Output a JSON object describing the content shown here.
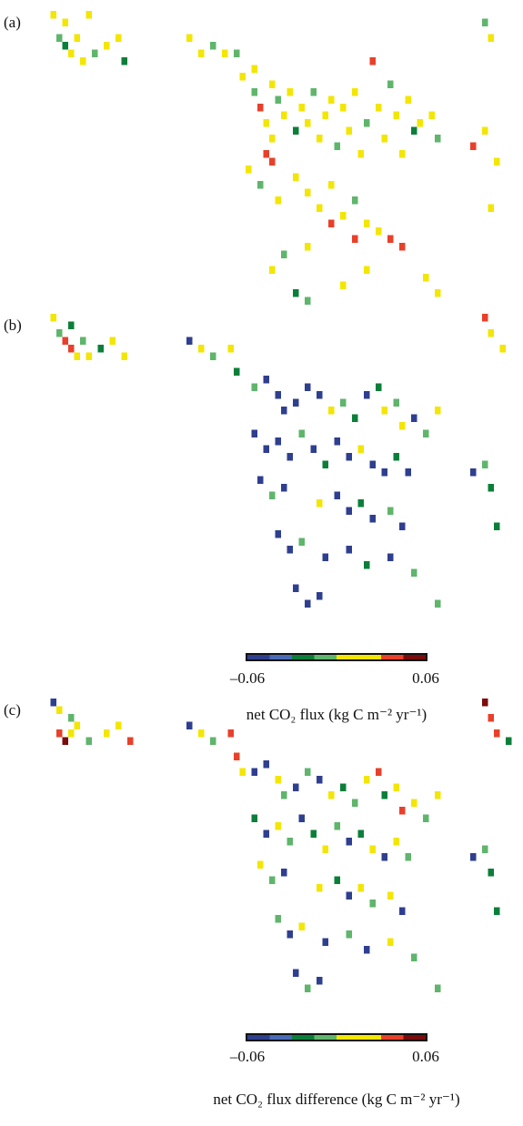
{
  "chart_data": [
    {
      "type": "heatmap",
      "label": "(a)",
      "clim": [
        -0.06,
        0.06
      ],
      "colormap": [
        "#2f3f8f",
        "#4a6bb8",
        "#0b7f3a",
        "#5fb56c",
        "#f3e600",
        "#f3e600",
        "#e8402a",
        "#7a0c0c"
      ],
      "cells": [
        [
          7,
          0,
          0.005
        ],
        [
          9,
          1,
          0.005
        ],
        [
          13,
          0,
          0.005
        ],
        [
          8,
          3,
          -0.015
        ],
        [
          9,
          4,
          -0.03
        ],
        [
          10,
          5,
          0.005
        ],
        [
          11,
          3,
          0.005
        ],
        [
          12,
          6,
          0.005
        ],
        [
          14,
          5,
          -0.015
        ],
        [
          16,
          4,
          0.005
        ],
        [
          18,
          3,
          0.005
        ],
        [
          19,
          6,
          -0.03
        ],
        [
          30,
          3,
          0.005
        ],
        [
          32,
          5,
          0.005
        ],
        [
          34,
          4,
          -0.015
        ],
        [
          36,
          5,
          0.005
        ],
        [
          38,
          5,
          -0.015
        ],
        [
          39,
          8,
          0.005
        ],
        [
          41,
          7,
          0.005
        ],
        [
          41,
          10,
          -0.015
        ],
        [
          42,
          12,
          0.04
        ],
        [
          43,
          14,
          0.005
        ],
        [
          44,
          9,
          0.005
        ],
        [
          44,
          16,
          0.005
        ],
        [
          45,
          11,
          -0.015
        ],
        [
          46,
          13,
          0.005
        ],
        [
          47,
          10,
          0.005
        ],
        [
          48,
          15,
          -0.03
        ],
        [
          49,
          12,
          0.005
        ],
        [
          50,
          14,
          0.005
        ],
        [
          51,
          10,
          -0.015
        ],
        [
          52,
          16,
          0.005
        ],
        [
          53,
          13,
          0.005
        ],
        [
          54,
          11,
          0.005
        ],
        [
          55,
          17,
          -0.015
        ],
        [
          56,
          12,
          0.005
        ],
        [
          57,
          15,
          0.005
        ],
        [
          58,
          10,
          0.005
        ],
        [
          59,
          18,
          0.005
        ],
        [
          60,
          14,
          -0.015
        ],
        [
          61,
          6,
          0.04
        ],
        [
          62,
          12,
          0.005
        ],
        [
          63,
          16,
          0.005
        ],
        [
          64,
          9,
          -0.015
        ],
        [
          65,
          13,
          0.005
        ],
        [
          66,
          18,
          0.005
        ],
        [
          67,
          11,
          0.005
        ],
        [
          68,
          15,
          -0.03
        ],
        [
          69,
          14,
          0.005
        ],
        [
          71,
          13,
          0.005
        ],
        [
          72,
          16,
          -0.015
        ],
        [
          40,
          20,
          0.005
        ],
        [
          42,
          22,
          -0.015
        ],
        [
          45,
          24,
          0.005
        ],
        [
          48,
          21,
          0.005
        ],
        [
          50,
          23,
          0.005
        ],
        [
          52,
          25,
          0.005
        ],
        [
          54,
          22,
          0.005
        ],
        [
          56,
          26,
          0.005
        ],
        [
          58,
          24,
          -0.015
        ],
        [
          60,
          27,
          0.005
        ],
        [
          62,
          28,
          0.005
        ],
        [
          64,
          29,
          0.04
        ],
        [
          66,
          30,
          0.04
        ],
        [
          58,
          29,
          0.04
        ],
        [
          54,
          27,
          0.04
        ],
        [
          50,
          30,
          0.005
        ],
        [
          46,
          31,
          -0.015
        ],
        [
          44,
          33,
          0.005
        ],
        [
          48,
          36,
          -0.03
        ],
        [
          50,
          37,
          -0.015
        ],
        [
          56,
          35,
          0.005
        ],
        [
          60,
          33,
          0.005
        ],
        [
          70,
          34,
          0.005
        ],
        [
          72,
          36,
          0.005
        ],
        [
          78,
          17,
          0.04
        ],
        [
          80,
          15,
          0.005
        ],
        [
          82,
          19,
          0.005
        ],
        [
          81,
          25,
          0.005
        ],
        [
          80,
          1,
          -0.015
        ],
        [
          81,
          3,
          0.005
        ],
        [
          43,
          18,
          0.04
        ],
        [
          44,
          19,
          0.04
        ]
      ]
    },
    {
      "type": "heatmap",
      "label": "(b)",
      "clim": [
        -0.06,
        0.06
      ],
      "colormap": [
        "#2f3f8f",
        "#4a6bb8",
        "#0b7f3a",
        "#5fb56c",
        "#f3e600",
        "#f3e600",
        "#e8402a",
        "#7a0c0c"
      ],
      "cells": [
        [
          7,
          0,
          0.005
        ],
        [
          8,
          2,
          -0.015
        ],
        [
          10,
          1,
          -0.03
        ],
        [
          9,
          3,
          0.04
        ],
        [
          10,
          4,
          0.04
        ],
        [
          11,
          5,
          0.005
        ],
        [
          12,
          3,
          -0.015
        ],
        [
          13,
          5,
          0.005
        ],
        [
          15,
          4,
          -0.03
        ],
        [
          17,
          3,
          0.005
        ],
        [
          19,
          5,
          0.005
        ],
        [
          30,
          3,
          -0.05
        ],
        [
          32,
          4,
          0.005
        ],
        [
          34,
          5,
          -0.015
        ],
        [
          37,
          4,
          0.005
        ],
        [
          38,
          7,
          -0.03
        ],
        [
          41,
          9,
          -0.015
        ],
        [
          43,
          8,
          -0.05
        ],
        [
          45,
          10,
          -0.05
        ],
        [
          46,
          12,
          -0.05
        ],
        [
          48,
          11,
          -0.05
        ],
        [
          50,
          9,
          -0.05
        ],
        [
          52,
          10,
          -0.05
        ],
        [
          54,
          12,
          0.005
        ],
        [
          56,
          11,
          -0.015
        ],
        [
          58,
          13,
          -0.03
        ],
        [
          60,
          10,
          -0.05
        ],
        [
          62,
          9,
          -0.03
        ],
        [
          63,
          12,
          0.005
        ],
        [
          65,
          11,
          -0.015
        ],
        [
          66,
          14,
          0.005
        ],
        [
          68,
          13,
          -0.05
        ],
        [
          70,
          15,
          -0.015
        ],
        [
          72,
          12,
          0.005
        ],
        [
          41,
          15,
          -0.05
        ],
        [
          43,
          17,
          -0.05
        ],
        [
          45,
          16,
          -0.05
        ],
        [
          47,
          18,
          -0.05
        ],
        [
          49,
          15,
          -0.015
        ],
        [
          51,
          17,
          -0.05
        ],
        [
          53,
          19,
          -0.03
        ],
        [
          55,
          16,
          -0.05
        ],
        [
          57,
          18,
          -0.05
        ],
        [
          59,
          17,
          0.005
        ],
        [
          61,
          19,
          -0.05
        ],
        [
          63,
          20,
          -0.05
        ],
        [
          65,
          18,
          -0.03
        ],
        [
          67,
          20,
          -0.05
        ],
        [
          42,
          21,
          -0.05
        ],
        [
          44,
          23,
          -0.015
        ],
        [
          46,
          22,
          -0.05
        ],
        [
          52,
          24,
          0.005
        ],
        [
          55,
          23,
          -0.05
        ],
        [
          57,
          25,
          -0.05
        ],
        [
          59,
          24,
          -0.03
        ],
        [
          61,
          26,
          -0.05
        ],
        [
          64,
          25,
          -0.015
        ],
        [
          66,
          27,
          -0.05
        ],
        [
          45,
          28,
          -0.05
        ],
        [
          47,
          30,
          -0.05
        ],
        [
          49,
          29,
          -0.015
        ],
        [
          53,
          31,
          -0.05
        ],
        [
          57,
          30,
          -0.05
        ],
        [
          60,
          32,
          -0.03
        ],
        [
          64,
          31,
          -0.05
        ],
        [
          68,
          33,
          -0.015
        ],
        [
          48,
          35,
          -0.05
        ],
        [
          50,
          37,
          -0.05
        ],
        [
          52,
          36,
          -0.05
        ],
        [
          72,
          37,
          -0.015
        ],
        [
          78,
          20,
          -0.05
        ],
        [
          80,
          19,
          -0.015
        ],
        [
          81,
          22,
          -0.03
        ],
        [
          82,
          27,
          -0.03
        ],
        [
          80,
          0,
          0.04
        ],
        [
          81,
          2,
          0.005
        ],
        [
          83,
          4,
          0.005
        ]
      ],
      "colorbar": {
        "xlim": [
          -0.06,
          0.06
        ],
        "xticks": [
          {
            "value": -0.06,
            "label": "–0.06"
          },
          0.06
        ],
        "label": "net CO₂ flux (kg C m⁻² yr⁻¹)"
      }
    },
    {
      "type": "heatmap",
      "label": "(c)",
      "clim": [
        -0.06,
        0.06
      ],
      "colormap": [
        "#2f3f8f",
        "#4a6bb8",
        "#0b7f3a",
        "#5fb56c",
        "#f3e600",
        "#f3e600",
        "#e8402a",
        "#7a0c0c"
      ],
      "cells": [
        [
          7,
          0,
          -0.05
        ],
        [
          8,
          1,
          0.005
        ],
        [
          10,
          2,
          -0.015
        ],
        [
          8,
          4,
          0.04
        ],
        [
          9,
          5,
          0.06
        ],
        [
          10,
          4,
          0.005
        ],
        [
          11,
          3,
          0.005
        ],
        [
          13,
          5,
          -0.015
        ],
        [
          16,
          4,
          0.005
        ],
        [
          18,
          3,
          0.005
        ],
        [
          20,
          5,
          0.04
        ],
        [
          30,
          3,
          -0.05
        ],
        [
          32,
          4,
          0.005
        ],
        [
          34,
          5,
          -0.015
        ],
        [
          37,
          4,
          0.04
        ],
        [
          38,
          7,
          0.04
        ],
        [
          39,
          9,
          0.005
        ],
        [
          41,
          9,
          -0.05
        ],
        [
          43,
          8,
          -0.05
        ],
        [
          45,
          10,
          0.005
        ],
        [
          46,
          12,
          -0.015
        ],
        [
          48,
          11,
          -0.05
        ],
        [
          50,
          9,
          -0.015
        ],
        [
          52,
          10,
          -0.05
        ],
        [
          54,
          12,
          0.005
        ],
        [
          56,
          11,
          -0.03
        ],
        [
          58,
          13,
          -0.015
        ],
        [
          60,
          10,
          0.005
        ],
        [
          62,
          9,
          0.04
        ],
        [
          63,
          12,
          -0.03
        ],
        [
          65,
          11,
          0.005
        ],
        [
          66,
          14,
          0.04
        ],
        [
          68,
          13,
          0.005
        ],
        [
          70,
          15,
          -0.015
        ],
        [
          72,
          12,
          0.005
        ],
        [
          41,
          15,
          -0.03
        ],
        [
          43,
          17,
          -0.05
        ],
        [
          45,
          16,
          0.005
        ],
        [
          47,
          18,
          -0.015
        ],
        [
          49,
          15,
          -0.05
        ],
        [
          51,
          17,
          -0.03
        ],
        [
          53,
          19,
          0.005
        ],
        [
          55,
          16,
          -0.015
        ],
        [
          57,
          18,
          -0.05
        ],
        [
          59,
          17,
          -0.03
        ],
        [
          61,
          19,
          0.005
        ],
        [
          63,
          20,
          -0.05
        ],
        [
          65,
          18,
          0.005
        ],
        [
          67,
          20,
          -0.015
        ],
        [
          42,
          21,
          0.005
        ],
        [
          44,
          23,
          -0.015
        ],
        [
          46,
          22,
          -0.05
        ],
        [
          52,
          24,
          0.005
        ],
        [
          55,
          23,
          -0.03
        ],
        [
          57,
          25,
          -0.05
        ],
        [
          59,
          24,
          0.005
        ],
        [
          61,
          26,
          -0.015
        ],
        [
          64,
          25,
          0.005
        ],
        [
          66,
          27,
          -0.05
        ],
        [
          45,
          28,
          -0.015
        ],
        [
          47,
          30,
          -0.05
        ],
        [
          49,
          29,
          0.005
        ],
        [
          53,
          31,
          -0.05
        ],
        [
          57,
          30,
          -0.015
        ],
        [
          60,
          32,
          -0.05
        ],
        [
          64,
          31,
          0.005
        ],
        [
          68,
          33,
          -0.015
        ],
        [
          48,
          35,
          -0.05
        ],
        [
          50,
          37,
          -0.015
        ],
        [
          52,
          36,
          -0.05
        ],
        [
          72,
          37,
          -0.015
        ],
        [
          78,
          20,
          -0.05
        ],
        [
          80,
          19,
          -0.015
        ],
        [
          81,
          22,
          -0.03
        ],
        [
          82,
          27,
          -0.03
        ],
        [
          80,
          0,
          0.06
        ],
        [
          81,
          2,
          0.04
        ],
        [
          82,
          4,
          0.04
        ],
        [
          84,
          5,
          -0.03
        ]
      ],
      "colorbar": {
        "xlim": [
          -0.06,
          0.06
        ],
        "xticks": [
          {
            "value": -0.06,
            "label": "–0.06"
          },
          0.06
        ],
        "label": "net CO₂ flux difference (kg C m⁻² yr⁻¹)"
      }
    }
  ]
}
